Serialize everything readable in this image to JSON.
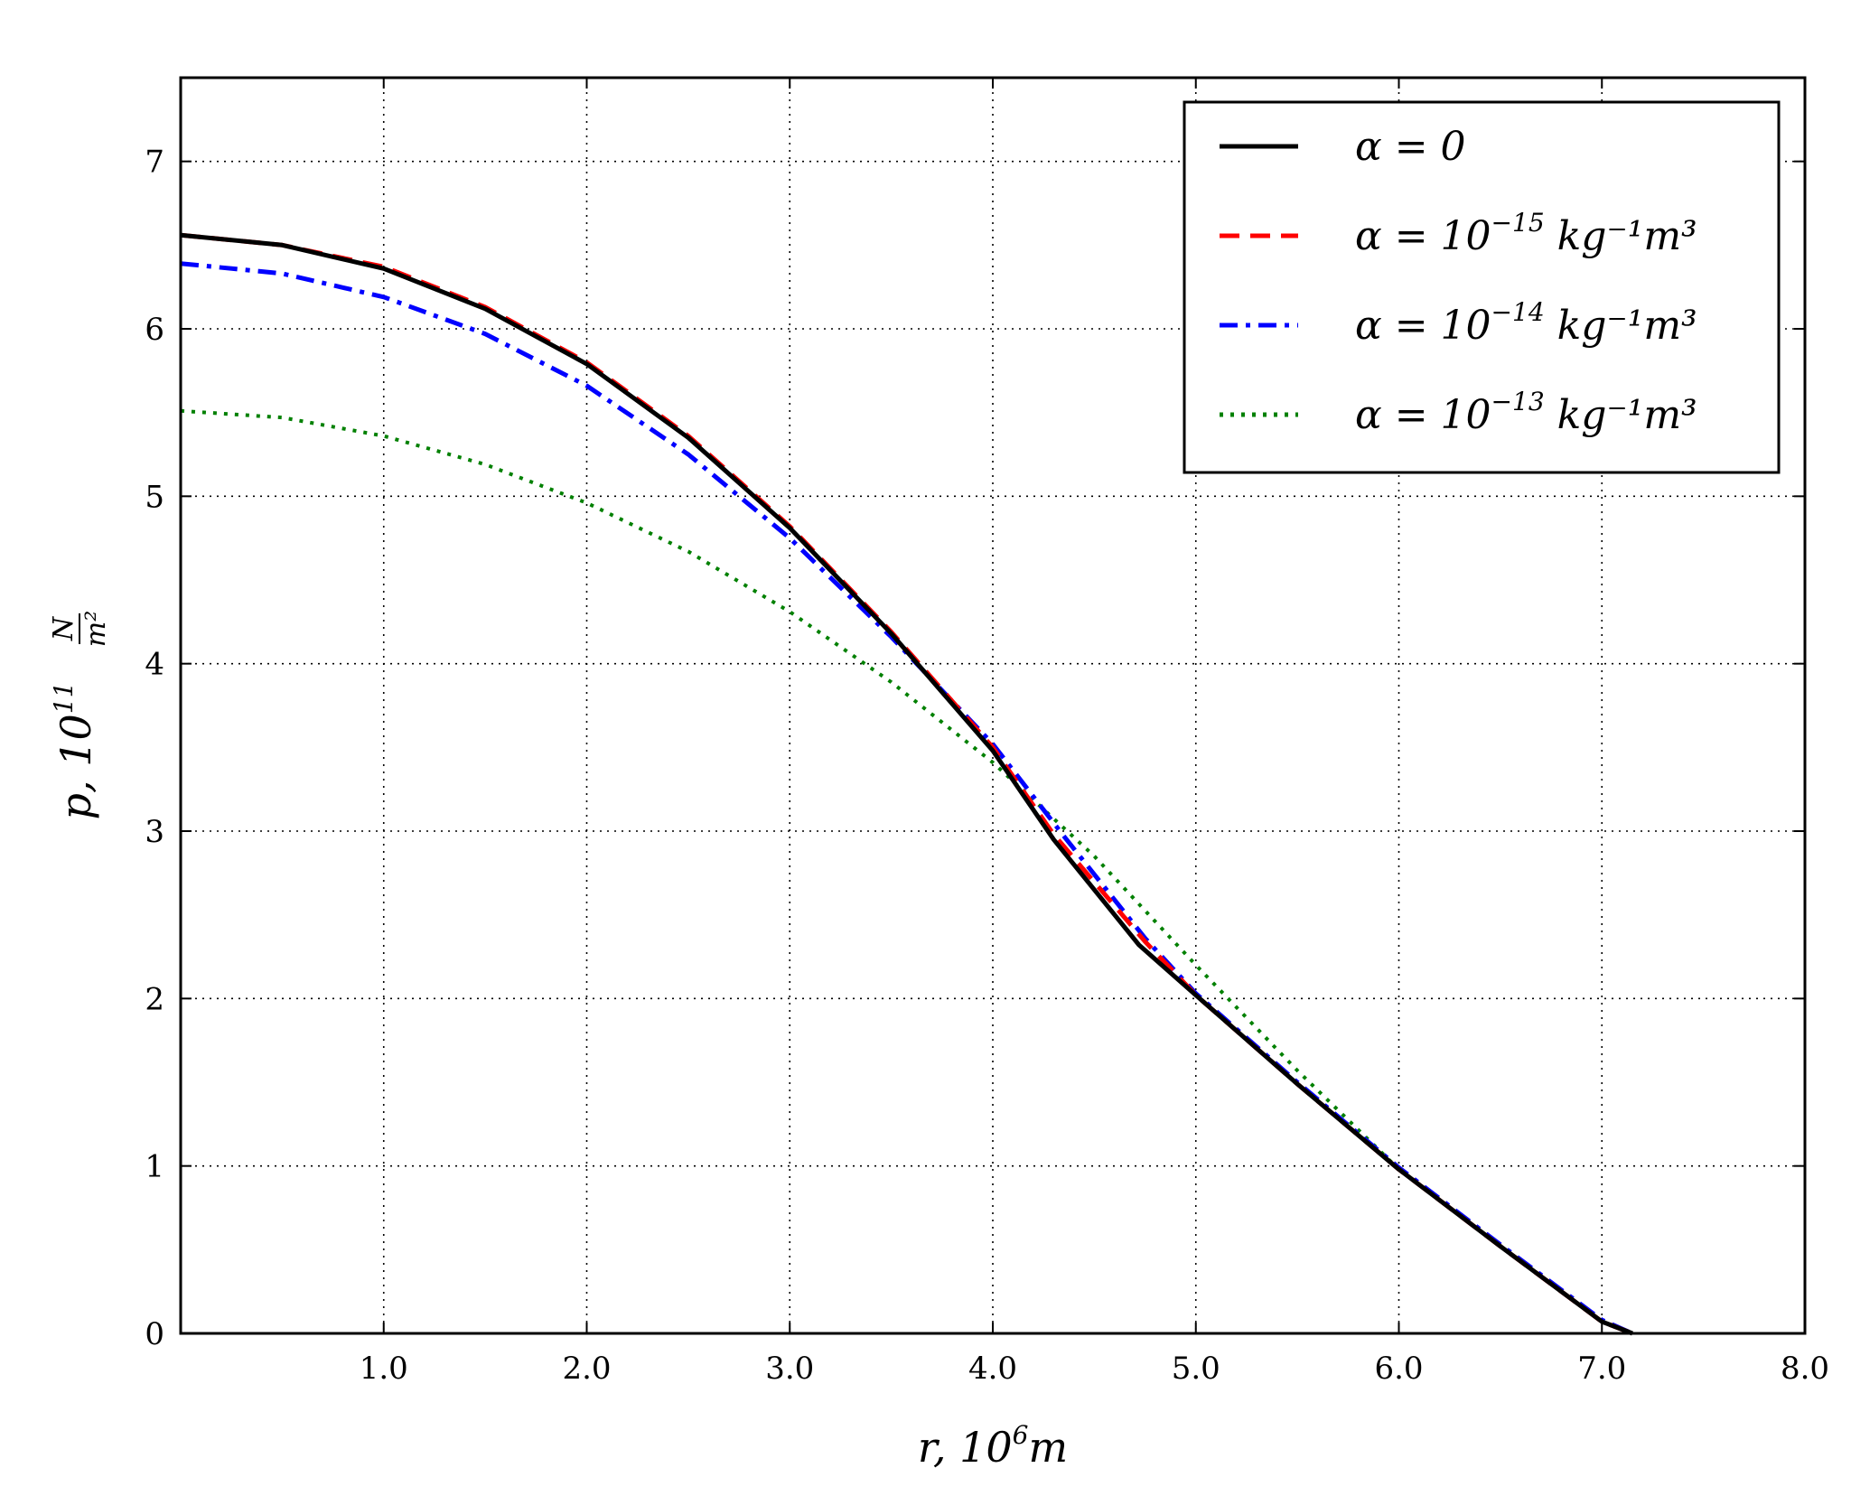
{
  "chart_data": {
    "type": "line",
    "xlabel": {
      "main": "r, 10",
      "sup": "6",
      "unit": "m"
    },
    "ylabel": {
      "main": "p, 10",
      "sup": "11",
      "num": "N",
      "den": "m²"
    },
    "xlim": [
      0,
      8
    ],
    "ylim": [
      0,
      7.5
    ],
    "xticks": [
      1,
      2,
      3,
      4,
      5,
      6,
      7,
      8
    ],
    "xtick_labels": [
      "1.0",
      "2.0",
      "3.0",
      "4.0",
      "5.0",
      "6.0",
      "7.0",
      "8.0"
    ],
    "yticks": [
      0,
      1,
      2,
      3,
      4,
      5,
      6,
      7
    ],
    "ytick_labels": [
      "0",
      "1",
      "2",
      "3",
      "4",
      "5",
      "6",
      "7"
    ],
    "grid": true,
    "legend_position": "top-right",
    "series": [
      {
        "name": "α = 0",
        "legend": {
          "pre": "α = 0",
          "sup": "",
          "post": ""
        },
        "color": "#000000",
        "style": "solid",
        "x": [
          0.0,
          0.5,
          1.0,
          1.5,
          2.0,
          2.5,
          3.0,
          3.5,
          4.0,
          4.3,
          4.72,
          5.0,
          5.5,
          6.0,
          6.5,
          7.0,
          7.15
        ],
        "y": [
          6.56,
          6.5,
          6.36,
          6.12,
          5.79,
          5.35,
          4.81,
          4.18,
          3.48,
          2.95,
          2.32,
          2.02,
          1.49,
          0.98,
          0.52,
          0.07,
          0.0
        ]
      },
      {
        "name": "α = 10⁻¹⁵ kg⁻¹m³",
        "legend": {
          "pre": "α = 10",
          "sup": "−15",
          "post": " kg⁻¹m³"
        },
        "color": "#ff0000",
        "style": "dashed",
        "x": [
          0.0,
          0.5,
          1.0,
          1.5,
          2.0,
          2.5,
          3.0,
          3.5,
          4.0,
          4.3,
          4.75,
          5.0,
          5.5,
          6.0,
          6.5,
          7.0,
          7.15
        ],
        "y": [
          6.56,
          6.5,
          6.37,
          6.13,
          5.8,
          5.36,
          4.82,
          4.19,
          3.5,
          2.98,
          2.34,
          2.02,
          1.49,
          0.98,
          0.52,
          0.07,
          0.0
        ]
      },
      {
        "name": "α = 10⁻¹⁴ kg⁻¹m³",
        "legend": {
          "pre": "α = 10",
          "sup": "−14",
          "post": " kg⁻¹m³"
        },
        "color": "#0000ff",
        "style": "dashdot",
        "x": [
          0.0,
          0.5,
          1.0,
          1.5,
          2.0,
          2.5,
          3.0,
          3.5,
          4.0,
          4.35,
          4.75,
          5.0,
          5.5,
          6.0,
          6.5,
          7.0,
          7.15
        ],
        "y": [
          6.39,
          6.33,
          6.19,
          5.97,
          5.66,
          5.25,
          4.75,
          4.16,
          3.52,
          2.97,
          2.36,
          2.03,
          1.5,
          0.99,
          0.53,
          0.08,
          0.0
        ]
      },
      {
        "name": "α = 10⁻¹³ kg⁻¹m³",
        "legend": {
          "pre": "α = 10",
          "sup": "−13",
          "post": " kg⁻¹m³"
        },
        "color": "#008000",
        "style": "dotted",
        "x": [
          0.0,
          0.5,
          1.0,
          1.5,
          2.0,
          2.5,
          3.0,
          3.5,
          4.0,
          4.5,
          5.0,
          5.5,
          6.0,
          6.5,
          7.0,
          7.15
        ],
        "y": [
          5.51,
          5.47,
          5.36,
          5.19,
          4.96,
          4.67,
          4.31,
          3.89,
          3.41,
          2.85,
          2.2,
          1.57,
          0.98,
          0.52,
          0.07,
          0.0
        ]
      }
    ]
  }
}
